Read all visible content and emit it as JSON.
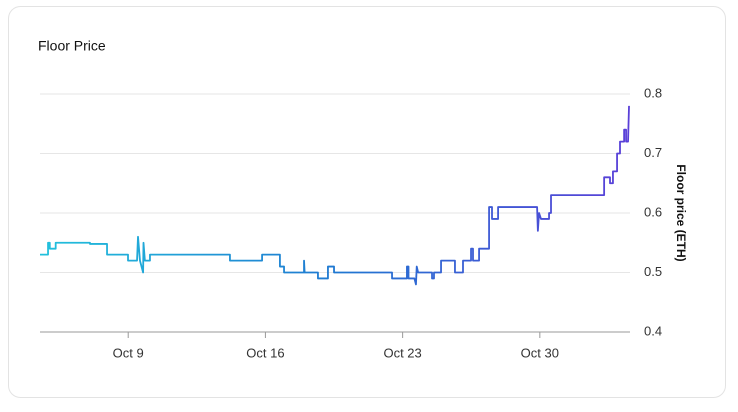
{
  "chart_data": {
    "type": "line",
    "title": "Floor Price",
    "y_label": "Floor price (ETH)",
    "line_colors": [
      "#22c1dc",
      "#1f78d1",
      "#5a3fd8"
    ],
    "xlim": [
      4.5,
      34.6
    ],
    "xticks": [
      {
        "value": 9,
        "label": "Oct 9"
      },
      {
        "value": 16,
        "label": "Oct 16"
      },
      {
        "value": 23,
        "label": "Oct 23"
      },
      {
        "value": 30,
        "label": "Oct 30"
      }
    ],
    "ylim": [
      0.4,
      0.8
    ],
    "yticks": [
      0.4,
      0.5,
      0.6,
      0.7,
      0.8
    ],
    "grid": true,
    "x": [
      4.5,
      4.91,
      4.91,
      5.0,
      5.0,
      5.3,
      5.3,
      7.05,
      7.05,
      7.92,
      7.92,
      8.99,
      8.99,
      9.45,
      9.5,
      9.6,
      9.76,
      9.78,
      9.85,
      10.11,
      10.11,
      14.19,
      14.19,
      15.83,
      15.83,
      16.74,
      16.74,
      16.95,
      16.95,
      17.97,
      17.97,
      18.0,
      18.68,
      18.68,
      19.19,
      19.19,
      19.5,
      19.5,
      22.46,
      22.46,
      23.22,
      23.22,
      23.3,
      23.3,
      23.6,
      23.68,
      23.72,
      23.79,
      24.5,
      24.5,
      24.6,
      24.6,
      24.96,
      24.96,
      25.67,
      25.67,
      26.08,
      26.08,
      26.49,
      26.49,
      26.59,
      26.59,
      26.9,
      26.9,
      27.41,
      27.41,
      27.56,
      27.56,
      27.87,
      27.87,
      29.86,
      29.9,
      29.96,
      30.06,
      30.47,
      30.47,
      30.57,
      30.57,
      33.28,
      33.28,
      33.58,
      33.58,
      33.73,
      33.73,
      33.94,
      33.94,
      34.09,
      34.09,
      34.3,
      34.3,
      34.4,
      34.4,
      34.5,
      34.55
    ],
    "series": [
      {
        "name": "Floor price",
        "values": [
          0.53,
          0.53,
          0.55,
          0.55,
          0.54,
          0.54,
          0.55,
          0.55,
          0.548,
          0.548,
          0.53,
          0.53,
          0.52,
          0.52,
          0.56,
          0.52,
          0.5,
          0.55,
          0.52,
          0.52,
          0.53,
          0.53,
          0.52,
          0.52,
          0.53,
          0.53,
          0.51,
          0.51,
          0.5,
          0.5,
          0.52,
          0.5,
          0.5,
          0.49,
          0.49,
          0.51,
          0.51,
          0.5,
          0.5,
          0.49,
          0.49,
          0.51,
          0.51,
          0.49,
          0.49,
          0.48,
          0.51,
          0.5,
          0.5,
          0.49,
          0.49,
          0.5,
          0.5,
          0.52,
          0.52,
          0.5,
          0.5,
          0.52,
          0.52,
          0.54,
          0.54,
          0.52,
          0.52,
          0.54,
          0.54,
          0.61,
          0.61,
          0.59,
          0.59,
          0.61,
          0.61,
          0.57,
          0.6,
          0.59,
          0.59,
          0.6,
          0.6,
          0.63,
          0.63,
          0.66,
          0.66,
          0.65,
          0.65,
          0.67,
          0.67,
          0.7,
          0.7,
          0.72,
          0.72,
          0.74,
          0.74,
          0.72,
          0.72,
          0.78
        ]
      }
    ]
  }
}
